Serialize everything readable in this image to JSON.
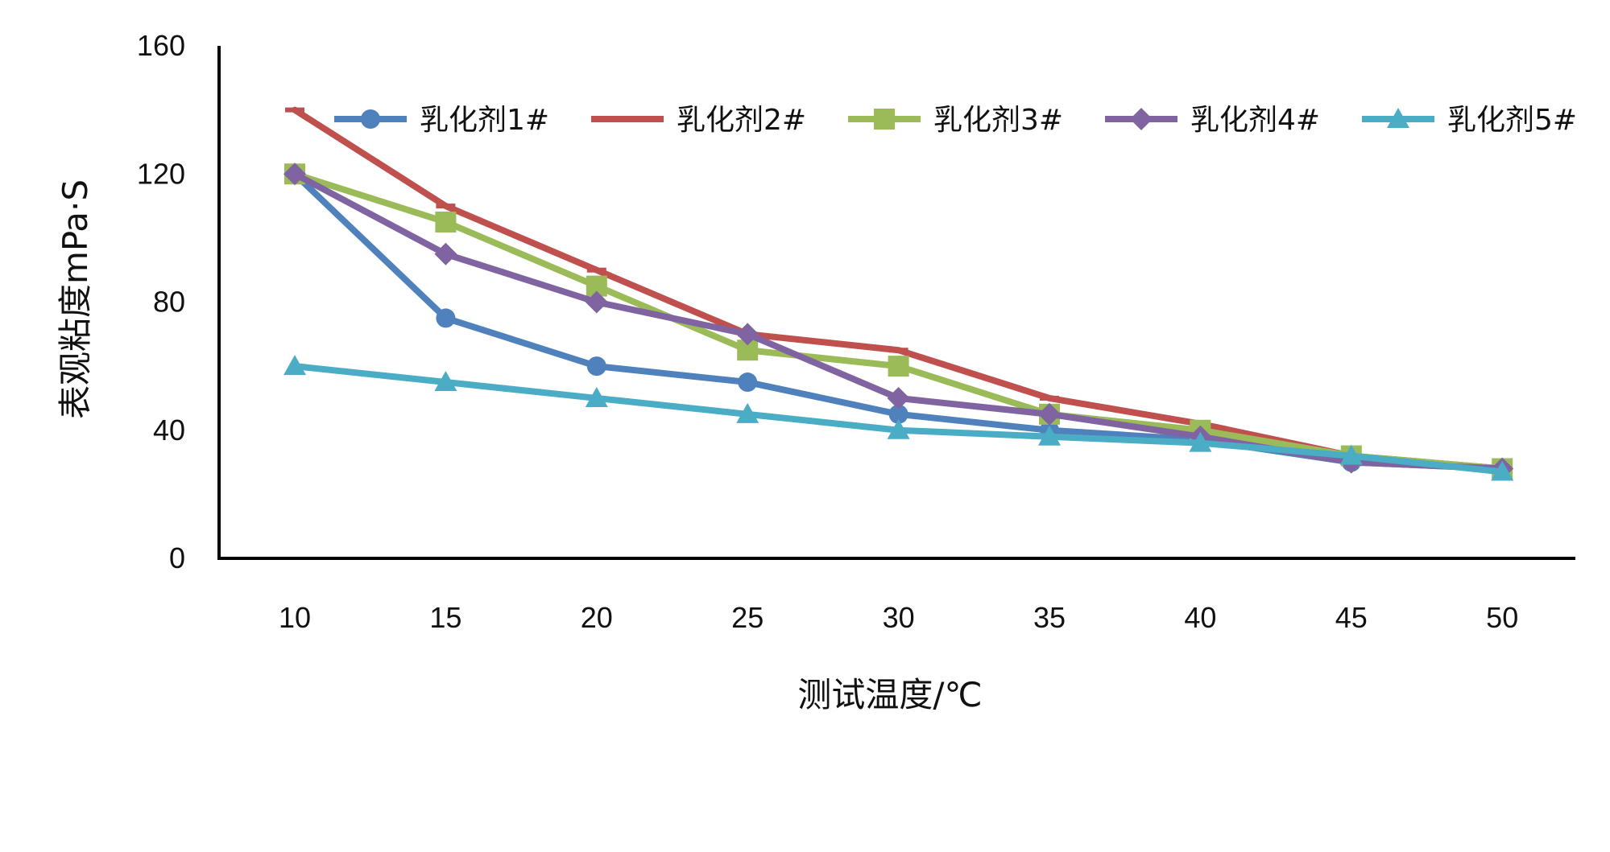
{
  "chart_data": {
    "type": "line",
    "title": "",
    "xlabel": "测试温度/℃",
    "ylabel": "表观粘度mPa·S",
    "categories": [
      "10",
      "15",
      "20",
      "25",
      "30",
      "35",
      "40",
      "45",
      "50"
    ],
    "ylim": [
      0,
      160
    ],
    "yticks": [
      "0",
      "40",
      "80",
      "120",
      "160"
    ],
    "grid": false,
    "legend_position": "top",
    "series": [
      {
        "name": "乳化剂1#",
        "color": "#4F81BD",
        "marker": "circle",
        "values": [
          120,
          75,
          60,
          55,
          45,
          40,
          37,
          30,
          28
        ]
      },
      {
        "name": "乳化剂2#",
        "color": "#C0504D",
        "marker": "dash",
        "values": [
          140,
          110,
          90,
          70,
          65,
          50,
          42,
          32,
          28
        ]
      },
      {
        "name": "乳化剂3#",
        "color": "#9BBB59",
        "marker": "square",
        "values": [
          120,
          105,
          85,
          65,
          60,
          45,
          40,
          32,
          28
        ]
      },
      {
        "name": "乳化剂4#",
        "color": "#8064A2",
        "marker": "diamond",
        "values": [
          120,
          95,
          80,
          70,
          50,
          45,
          38,
          30,
          28
        ]
      },
      {
        "name": "乳化剂5#",
        "color": "#4BACC6",
        "marker": "triangle",
        "values": [
          60,
          55,
          50,
          45,
          40,
          38,
          36,
          32,
          27
        ]
      }
    ]
  }
}
